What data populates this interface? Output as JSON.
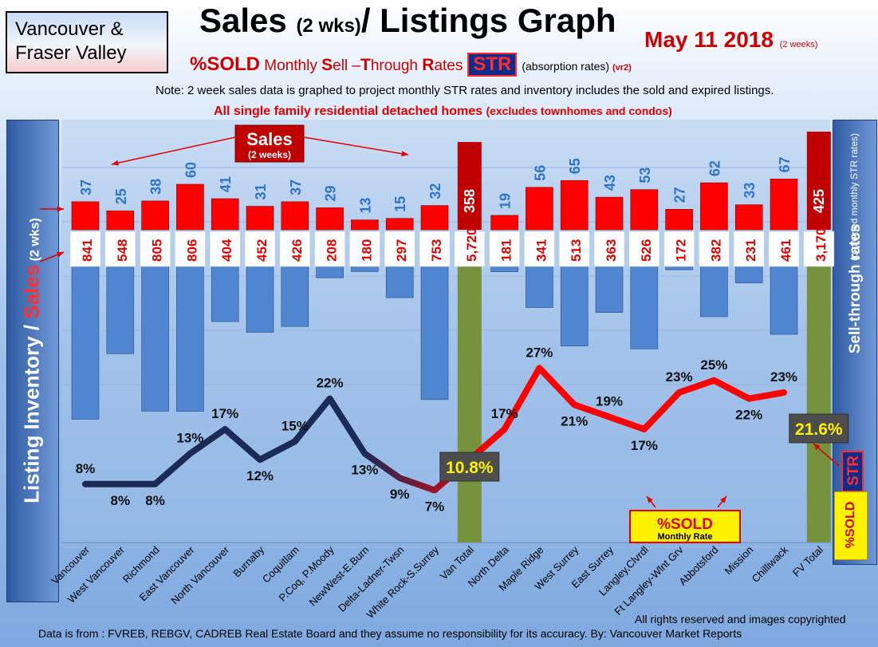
{
  "header": {
    "region": [
      "Vancouver &",
      "Fraser Valley"
    ],
    "title_main": "Sales ",
    "title_small": "(2 wks)",
    "title_rest": "/ Listings Graph",
    "date": "May 11 2018",
    "date_note": "(2 weeks)",
    "subtitle_sold": "%SOLD",
    "subtitle_pre": " Monthly ",
    "subtitle_s": "S",
    "subtitle_ell": "ell –",
    "subtitle_t": "T",
    "subtitle_hrough": "hrough ",
    "subtitle_r": "R",
    "subtitle_ates": "ates",
    "subtitle_badge": "STR",
    "subtitle_absorb": "(absorption rates)",
    "subtitle_version": "(vr2)",
    "note": "Note: 2 week sales data is graphed to project monthly STR rates and inventory includes the sold and expired listings.",
    "scope": "All single family residential detached homes ",
    "scope_small": "(excludes townhomes and condos)"
  },
  "side_labels": {
    "left_main": "Listing Inventory / ",
    "left_sales": "Sales",
    "left_small": " (2  wks)",
    "right_main": "Sell-through rates",
    "right_small": "(projected monthly STR rates)",
    "right_str": "STR",
    "right_sold": "%SOLD"
  },
  "annotations": {
    "sales_title": "Sales",
    "sales_sub": "(2 weeks)",
    "sold_title": "%SOLD",
    "sold_sub": "Monthly Rate"
  },
  "footer": {
    "rights": "All rights reserved and  images copyrighted",
    "source": "Data is from : FVREB, REBGV, CADREB Real Estate Board and they assume no responsibility for its accuracy. By: Vancouver Market Reports"
  },
  "colors": {
    "sales_bar": "#ff0000",
    "sales_total_bar": "#c00000",
    "listing_bar": "#4f86cf",
    "total_bar": "#76923c",
    "sales_label": "#2e75c6",
    "listing_label": "#e00000",
    "line_low": "#1a2b55",
    "line_high": "#ff0000"
  },
  "chart_data": {
    "type": "bar",
    "categories": [
      "Vancouver",
      "West Vancouver",
      "Richmond",
      "East Vancouver",
      "North Vancouver",
      "Burnaby",
      "Coquitlam",
      "P.Coq, P.Moody",
      "NewWest-E.Burn",
      "Delta-Ladner-Twsn",
      "White Rock-S.Surrey",
      "Van Total",
      "North Delta",
      "Maple Ridge",
      "West Surrey",
      "East Surrey",
      "Langley,Clvrdl",
      "Ft Langley-Wlnt Grv",
      "Abbotsford",
      "Mission",
      "Chilliwack",
      "FV Total"
    ],
    "series": [
      {
        "name": "Sales",
        "values": [
          37,
          25,
          38,
          60,
          41,
          31,
          37,
          29,
          13,
          15,
          32,
          358,
          19,
          56,
          65,
          43,
          53,
          27,
          62,
          33,
          67,
          425
        ]
      },
      {
        "name": "Listing Inventory",
        "values": [
          841,
          548,
          805,
          806,
          404,
          452,
          426,
          208,
          180,
          297,
          753,
          5720,
          181,
          341,
          513,
          363,
          526,
          172,
          382,
          231,
          461,
          3170
        ]
      },
      {
        "name": "%SOLD",
        "values": [
          8,
          8,
          8,
          13,
          17,
          12,
          15,
          22,
          13,
          9,
          7,
          10.8,
          17,
          27,
          21,
          19,
          17,
          23,
          25,
          22,
          23,
          21.6
        ]
      }
    ],
    "percent_labels": [
      "8%",
      "8%",
      "8%",
      "13%",
      "17%",
      "12%",
      "15%",
      "22%",
      "13%",
      "9%",
      "7%",
      "10.8%",
      "17%",
      "27%",
      "21%",
      "19%",
      "17%",
      "23%",
      "25%",
      "22%",
      "23%",
      "21.6%"
    ],
    "total_indices": [
      11,
      21
    ],
    "xlabel": "",
    "ylabel": "Listing Inventory / Sales (2  wks)",
    "y2label": "Sell-through rates"
  }
}
